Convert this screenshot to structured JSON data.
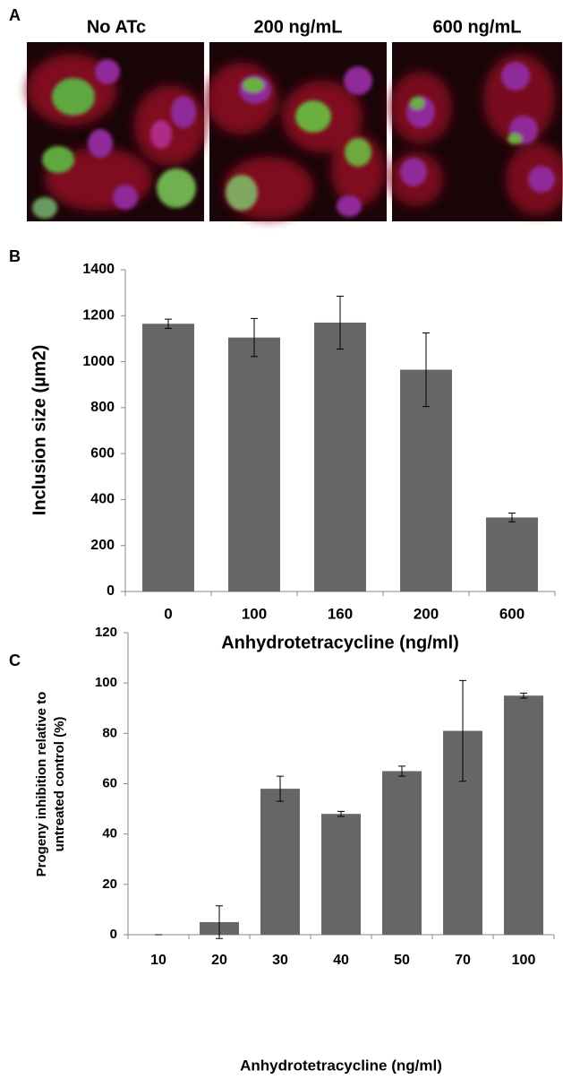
{
  "panel_labels": [
    "A",
    "B",
    "C"
  ],
  "image_panel": {
    "titles": [
      "No ATc",
      "200 ng/mL",
      "600 ng/mL"
    ]
  },
  "chart_data": [
    {
      "type": "bar",
      "categories": [
        "0",
        "100",
        "160",
        "200",
        "600"
      ],
      "values": [
        1165,
        1105,
        1170,
        965,
        322
      ],
      "errors": [
        20,
        83,
        115,
        160,
        19
      ],
      "color": "#666666",
      "ylim": [
        0,
        1400
      ],
      "yticks": [
        0,
        200,
        400,
        600,
        800,
        1000,
        1200,
        1400
      ],
      "ylabel": [
        "Inclusion size (µm2)"
      ],
      "xlabel": "Anhydrotetracycline (ng/ml)"
    },
    {
      "type": "bar",
      "categories": [
        "10",
        "20",
        "30",
        "40",
        "50",
        "70",
        "100"
      ],
      "values": [
        0,
        5,
        58,
        48,
        65,
        81,
        95
      ],
      "errors": [
        0,
        6.5,
        5,
        1,
        2,
        20,
        1
      ],
      "color": "#666666",
      "ylim": [
        0,
        120
      ],
      "yticks": [
        0,
        20,
        40,
        60,
        80,
        100,
        120
      ],
      "ylabel": [
        "Progeny inhibition relative to",
        "untreated control (%)"
      ],
      "xlabel": "Anhydrotetracycline (ng/ml)"
    }
  ]
}
